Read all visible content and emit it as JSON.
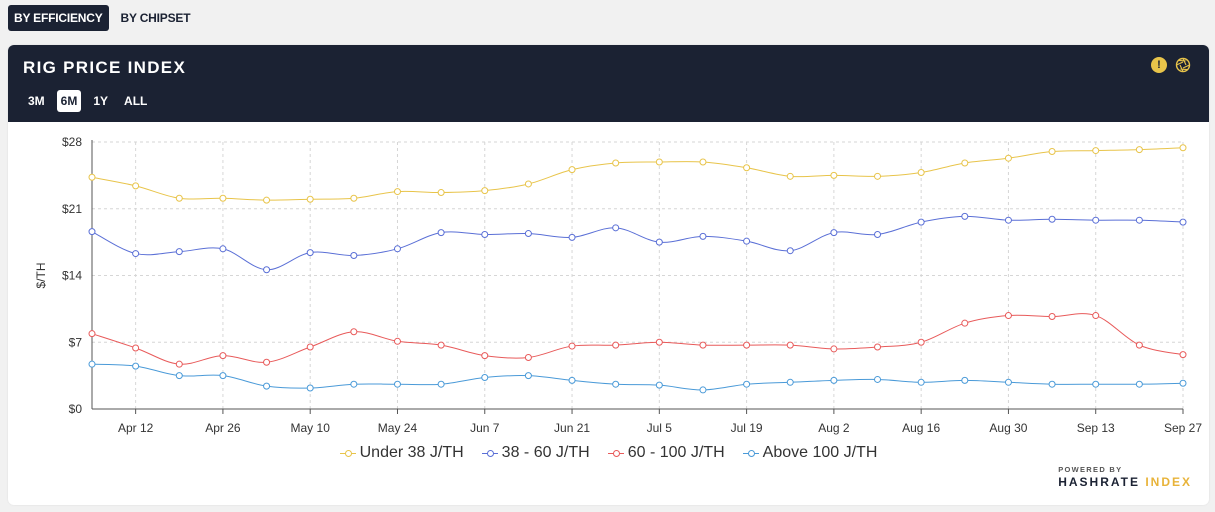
{
  "top_tabs": [
    {
      "label": "BY EFFICIENCY",
      "active": true
    },
    {
      "label": "BY CHIPSET",
      "active": false
    }
  ],
  "card": {
    "title": "RIG PRICE INDEX",
    "ranges": [
      {
        "label": "3M",
        "active": false
      },
      {
        "label": "6M",
        "active": true
      },
      {
        "label": "1Y",
        "active": false
      },
      {
        "label": "ALL",
        "active": false
      }
    ],
    "icons": [
      "alert-icon",
      "aperture-icon"
    ]
  },
  "branding": {
    "powered_by": "POWERED BY",
    "brand_main": "HASHRATE",
    "brand_accent": "INDEX"
  },
  "chart_data": {
    "type": "line",
    "ylabel": "$/TH",
    "ylim": [
      0,
      28
    ],
    "yticks": [
      "$0",
      "$7",
      "$14",
      "$21",
      "$28"
    ],
    "yticks_values": [
      0,
      7,
      14,
      21,
      28
    ],
    "grid": true,
    "legend": "bottom",
    "x_range_weeks": [
      -1,
      24
    ],
    "xtick_labels": [
      "Apr 12",
      "Apr 26",
      "May 10",
      "May 24",
      "Jun 7",
      "Jun 21",
      "Jul 5",
      "Jul 19",
      "Aug 2",
      "Aug 16",
      "Aug 30",
      "Sep 13",
      "Sep 27"
    ],
    "x_week_index": [
      -1,
      0,
      1,
      2,
      3,
      4,
      5,
      6,
      7,
      8,
      9,
      10,
      11,
      12,
      13,
      14,
      15,
      16,
      17,
      18,
      19,
      20,
      21,
      22,
      23,
      24
    ],
    "series": [
      {
        "name": "Under 38 J/TH",
        "color": "#e8c44a",
        "values": [
          24.3,
          23.4,
          22.1,
          22.1,
          21.9,
          22.0,
          22.1,
          22.8,
          22.7,
          22.9,
          23.6,
          25.1,
          25.8,
          25.9,
          25.9,
          25.3,
          24.4,
          24.5,
          24.4,
          24.8,
          25.8,
          26.3,
          27.0,
          27.1,
          27.2,
          27.4
        ]
      },
      {
        "name": "38 - 60 J/TH",
        "color": "#5a6fd6",
        "values": [
          18.6,
          16.3,
          16.5,
          16.8,
          14.6,
          16.4,
          16.1,
          16.8,
          18.5,
          18.3,
          18.4,
          18.0,
          19.0,
          17.5,
          18.1,
          17.6,
          16.6,
          18.5,
          18.3,
          19.6,
          20.2,
          19.8,
          19.9,
          19.8,
          19.8,
          19.6
        ]
      },
      {
        "name": "60 - 100 J/TH",
        "color": "#e85a5a",
        "values": [
          7.9,
          6.4,
          4.7,
          5.6,
          4.9,
          6.5,
          8.1,
          7.1,
          6.7,
          5.6,
          5.4,
          6.6,
          6.7,
          7.0,
          6.7,
          6.7,
          6.7,
          6.3,
          6.5,
          7.0,
          9.0,
          9.8,
          9.7,
          9.8,
          6.7,
          5.7
        ]
      },
      {
        "name": "Above 100 J/TH",
        "color": "#4a9ad8",
        "values": [
          4.7,
          4.5,
          3.5,
          3.5,
          2.4,
          2.2,
          2.6,
          2.6,
          2.6,
          3.3,
          3.5,
          3.0,
          2.6,
          2.5,
          2.0,
          2.6,
          2.8,
          3.0,
          3.1,
          2.8,
          3.0,
          2.8,
          2.6,
          2.6,
          2.6,
          2.7
        ]
      }
    ]
  }
}
